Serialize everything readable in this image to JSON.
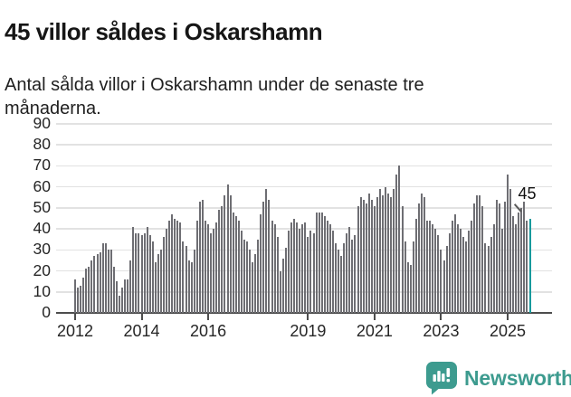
{
  "header": {
    "title": "45 villor såldes i Oskarshamn",
    "subtitle": "Antal sålda villor i Oskarshamn under de senaste tre månaderna."
  },
  "footer": {
    "brand": "Newsworthy",
    "logo_icon": "bar-chart-speech-bubble-icon"
  },
  "colors": {
    "bar": "#6e6e73",
    "highlight": "#179a9c",
    "grid": "#e2e2e2",
    "axis": "#4d4d4d",
    "tick_text": "#262626",
    "title_text": "#161616",
    "annotation_text": "#111111",
    "brand_teal": "#3d9b8f",
    "logo_glyph": "#ffffff"
  },
  "chart_data": {
    "type": "bar",
    "title": "45 villor såldes i Oskarshamn",
    "subtitle": "Antal sålda villor i Oskarshamn under de senaste tre månaderna.",
    "ylabel": "",
    "xlabel": "",
    "ylim": [
      0,
      90
    ],
    "ytick_step": 10,
    "grid": "horizontal",
    "legend": "none",
    "frequency": "monthly",
    "start_month": "2012-01",
    "x_ticks": [
      {
        "label": "2012",
        "index": 0
      },
      {
        "label": "2014",
        "index": 24
      },
      {
        "label": "2016",
        "index": 48
      },
      {
        "label": "2019",
        "index": 84
      },
      {
        "label": "2021",
        "index": 108
      },
      {
        "label": "2023",
        "index": 132
      },
      {
        "label": "2025",
        "index": 156
      }
    ],
    "values": [
      16,
      12,
      13,
      17,
      21,
      22,
      25,
      27,
      28,
      29,
      33,
      33,
      30,
      30,
      22,
      15,
      8,
      12,
      16,
      16,
      25,
      41,
      38,
      38,
      37,
      38,
      41,
      37,
      34,
      24,
      28,
      30,
      36,
      40,
      44,
      47,
      45,
      44,
      43,
      34,
      32,
      25,
      24,
      30,
      44,
      53,
      54,
      44,
      42,
      38,
      40,
      43,
      49,
      51,
      56,
      61,
      56,
      48,
      46,
      44,
      39,
      35,
      34,
      30,
      24,
      28,
      35,
      47,
      53,
      59,
      54,
      44,
      42,
      36,
      20,
      26,
      31,
      39,
      43,
      45,
      43,
      40,
      42,
      43,
      36,
      39,
      38,
      48,
      48,
      48,
      46,
      44,
      42,
      39,
      33,
      30,
      27,
      33,
      38,
      41,
      35,
      37,
      51,
      55,
      54,
      52,
      57,
      54,
      51,
      55,
      59,
      56,
      60,
      57,
      55,
      59,
      66,
      70,
      51,
      34,
      24,
      23,
      34,
      45,
      52,
      57,
      55,
      44,
      44,
      42,
      40,
      37,
      30,
      25,
      32,
      38,
      44,
      47,
      42,
      40,
      36,
      34,
      39,
      44,
      52,
      56,
      56,
      51,
      33,
      32,
      36,
      42,
      54,
      52,
      40,
      53,
      66,
      59,
      46,
      42,
      48,
      50,
      53,
      44,
      45
    ],
    "highlight_last_value": 45,
    "annotation": "45"
  }
}
